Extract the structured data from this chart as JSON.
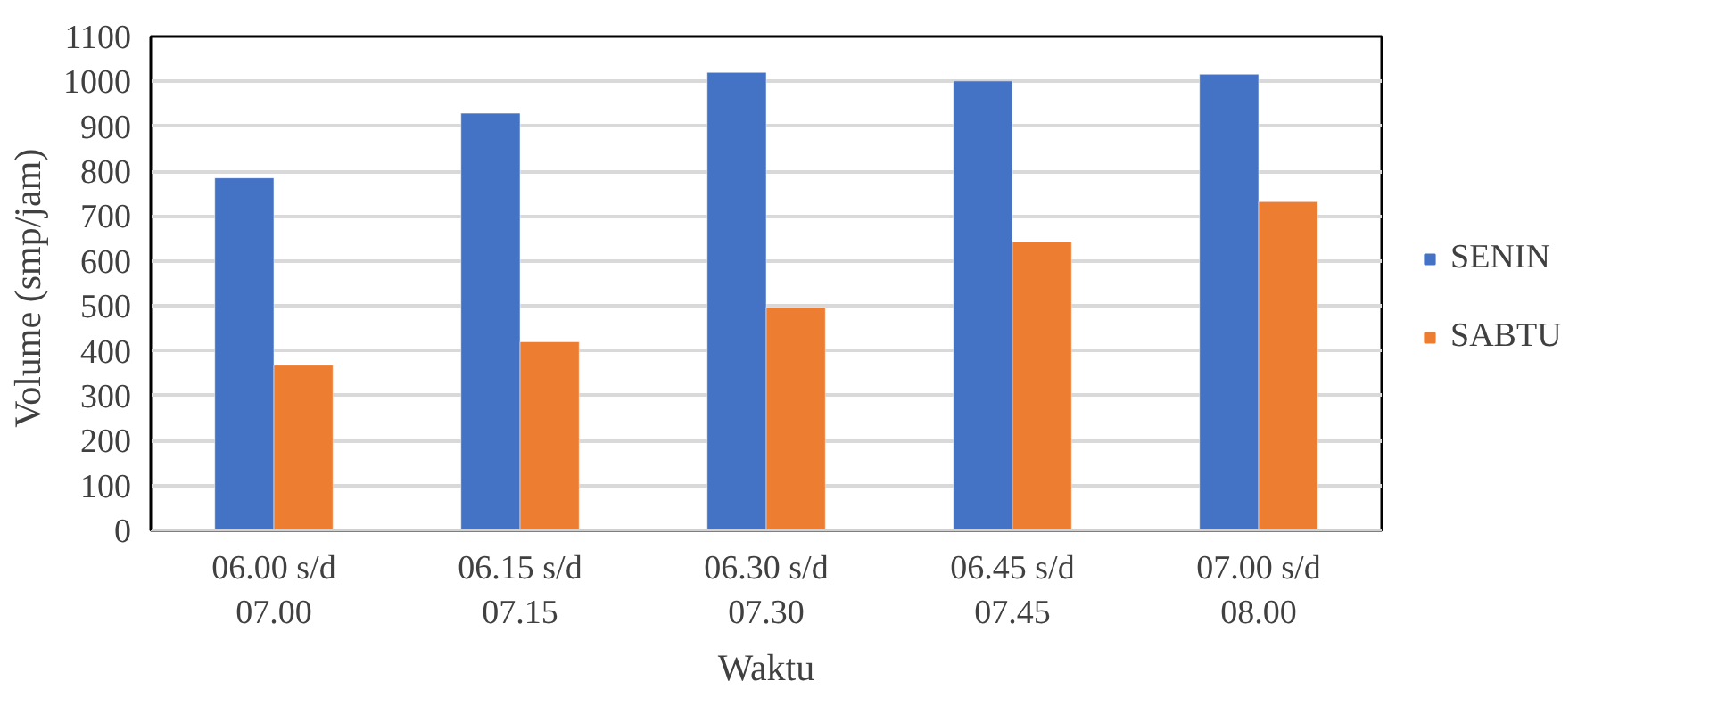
{
  "chart_data": {
    "type": "bar",
    "xlabel": "Waktu",
    "ylabel": "Volume  (smp/jam)",
    "categories": [
      "06.00 s/d\n07.00",
      "06.15 s/d\n07.15",
      "06.30 s/d\n07.30",
      "06.45 s/d\n07.45",
      "07.00 s/d\n08.00"
    ],
    "series": [
      {
        "name": "SENIN",
        "color": "#4472c4",
        "values": [
          785,
          929,
          1020,
          1001,
          1016
        ]
      },
      {
        "name": "SABTU",
        "color": "#ed7d31",
        "values": [
          368,
          420,
          497,
          643,
          732
        ]
      }
    ],
    "ylim": [
      0,
      1100
    ],
    "yticks": [
      0,
      100,
      200,
      300,
      400,
      500,
      600,
      700,
      800,
      900,
      1000,
      1100
    ],
    "grid": "y",
    "legend": "right"
  }
}
